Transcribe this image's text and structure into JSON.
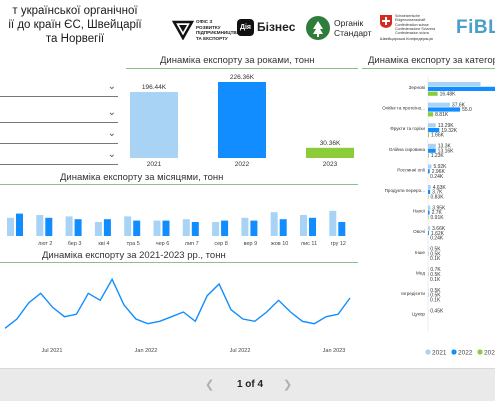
{
  "report": {
    "title_lines": [
      "т української органічної",
      "ії до країн ЄС, Швейцарії",
      "та Норвегії"
    ]
  },
  "logos": {
    "office": "ОФІС З РОЗВИТКУ ПІДПРИЄМНИЦТВА ТА ЕКСПОРТУ",
    "diia_mark": "Дія",
    "diia": "Бізнес",
    "organic": [
      "Органік",
      "Стандарт"
    ],
    "swiss": [
      "Schweizerische Eidgenossenschaft",
      "Confédération suisse",
      "Confederazione Svizzera",
      "Confederaziun svizra"
    ],
    "swiss_sub": "Швейцарська Конфедерація",
    "fibl": "FiBL"
  },
  "colors": {
    "y2021": "#a9d3f5",
    "y2022": "#118dff",
    "y2023": "#8ccc3a",
    "line": "#118dff",
    "rule": "#8ac28a"
  },
  "chart_data": [
    {
      "type": "bar",
      "title": "Динаміка експорту за роками, тонн",
      "categories": [
        "2021",
        "2022",
        "2023"
      ],
      "values": [
        196.44,
        226.36,
        30.36
      ],
      "labels": [
        "196.44K",
        "226.36K",
        "30.36K"
      ]
    },
    {
      "type": "bar",
      "title": "Динаміка експорту за місяцями, тонн",
      "categories": [
        "",
        "лют 2",
        "бер 3",
        "кві 4",
        "тра 5",
        "чер 6",
        "лип 7",
        "сер 8",
        "вер 9",
        "жов 10",
        "лис 11",
        "гру 12"
      ],
      "series": [
        {
          "name": "2021",
          "values": [
            13,
            15,
            14,
            10,
            14,
            11,
            12,
            10,
            13,
            17,
            15,
            18
          ]
        },
        {
          "name": "2022",
          "values": [
            16,
            13,
            12,
            12,
            11,
            11,
            10,
            11,
            11,
            12,
            13,
            10
          ]
        },
        {
          "name": "2023",
          "values": [
            0,
            0,
            0,
            0,
            0,
            0,
            0,
            0,
            0,
            0,
            0,
            0
          ]
        }
      ]
    },
    {
      "type": "line",
      "title": "Динаміка експорту за 2021-2023 рр., тонн",
      "x_ticks": [
        "Jul 2021",
        "Jan 2022",
        "Jul 2022",
        "Jan 2023"
      ],
      "values": [
        5,
        9,
        16,
        20,
        14,
        10,
        11,
        20,
        17,
        26,
        15,
        9,
        7,
        8,
        10,
        12,
        8,
        19,
        24,
        13,
        9,
        8,
        12,
        17,
        12,
        8,
        7,
        10,
        11,
        18
      ]
    },
    {
      "type": "bar",
      "title": "Динаміка експорту за категоріями, тонн",
      "categories": [
        "Зернові",
        "Олійні та протеїно...",
        "Фрукти та горіхи",
        "Олійна сировина",
        "Рослинні олії",
        "Продукти переро...",
        "Напої",
        "Овочі",
        "Інше",
        "Мед",
        "Інгредієнти",
        "Цукор"
      ],
      "series": [
        {
          "name": "2021",
          "values": [
            90,
            37.6,
            13.29,
            13.3,
            5.92,
            4.63,
            3.95,
            3.66,
            0.5,
            0.7,
            0.5,
            0.45
          ]
        },
        {
          "name": "2022",
          "values": [
            120,
            55.0,
            19.32,
            13.16,
            2.96,
            3.7,
            2.7,
            1.62,
            0.5,
            0.5,
            0.5,
            0
          ]
        },
        {
          "name": "2023",
          "values": [
            16.48,
            8.81,
            1.66,
            1.23,
            0.24,
            0.83,
            0.91,
            0.24,
            0.1,
            0.1,
            0.1,
            0
          ]
        }
      ],
      "labels": [
        [
          "",
          "",
          "16.48K"
        ],
        [
          "37.6K",
          "55.0",
          "8.81K"
        ],
        [
          "13.29K",
          "19.32K",
          "1.66K"
        ],
        [
          "13.3K",
          "13.16K",
          "1.23K"
        ],
        [
          "5.92K",
          "2.96K",
          "0.24K"
        ],
        [
          "4.63K",
          "3.7K",
          "0.83K"
        ],
        [
          "3.95K",
          "2.7K",
          "0.91K"
        ],
        [
          "3.66K",
          "1.62K",
          "0.24K"
        ],
        [
          "0.5K",
          "0.5K",
          "0.1K"
        ],
        [
          "0.7K",
          "0.5K",
          "0.1K"
        ],
        [
          "0.5K",
          "0.5K",
          "0.1K"
        ],
        [
          "0.45K",
          "",
          ""
        ]
      ],
      "legend": [
        "2021",
        "2022",
        "2023"
      ]
    }
  ],
  "footer": {
    "page_label": "1 of 4"
  }
}
